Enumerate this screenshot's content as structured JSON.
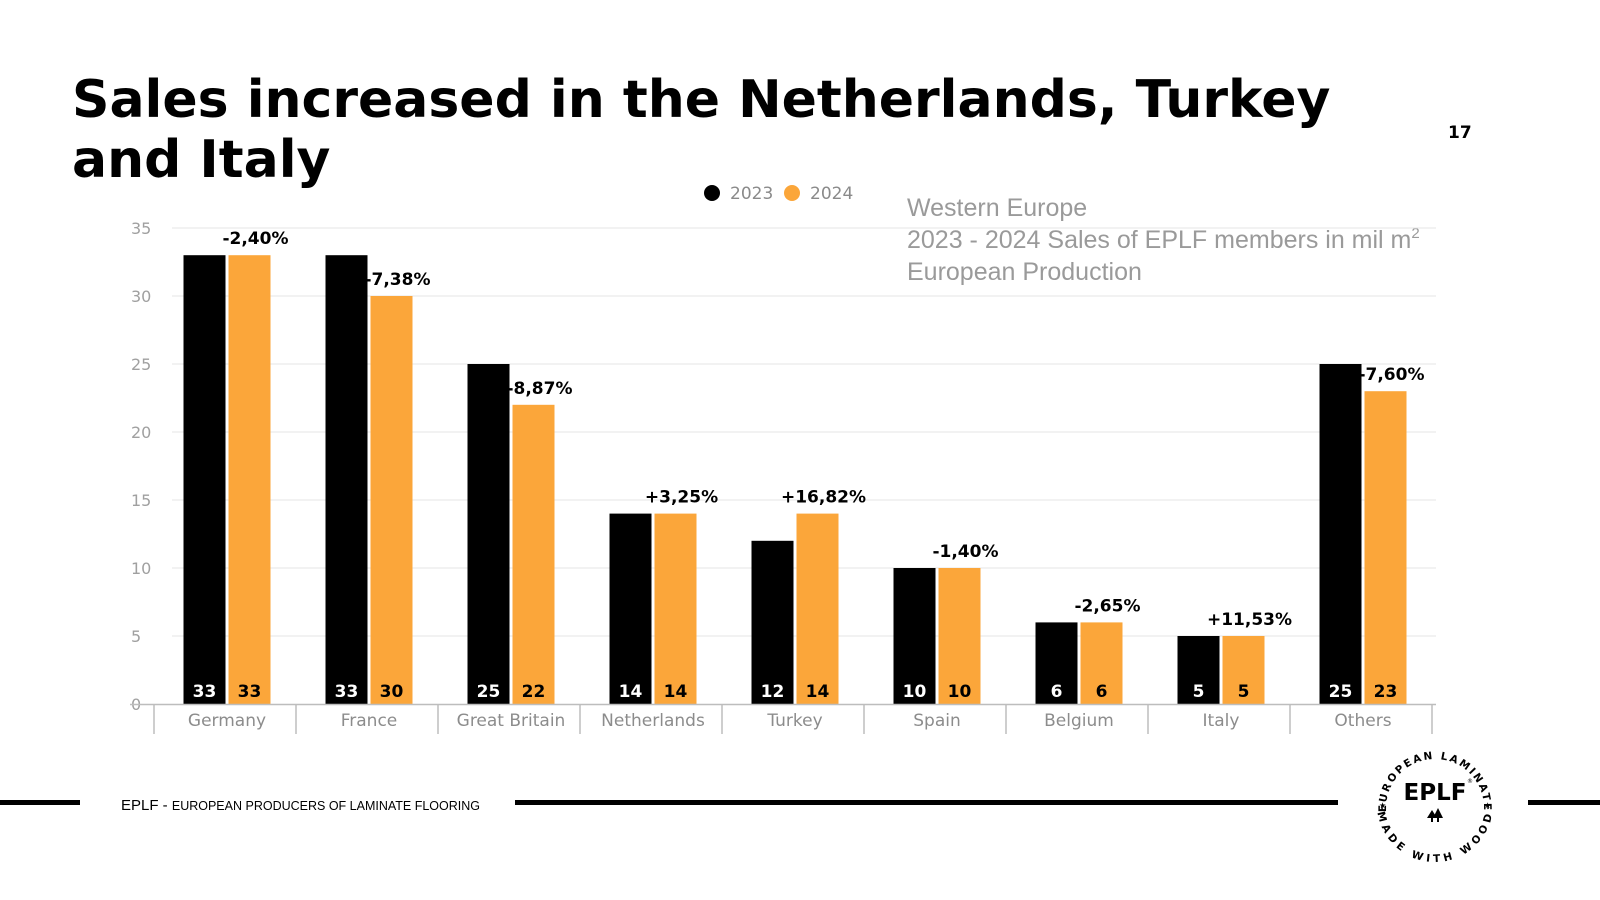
{
  "slide": {
    "title": "Sales increased in the Netherlands, Turkey and Italy",
    "page_number": "17",
    "subtitle_lines": [
      "Western Europe",
      "2023 - 2024 Sales of EPLF members in mil m",
      "European Production"
    ],
    "subtitle_unit_sup": "2"
  },
  "footer": {
    "abbr": "EPLF",
    "separator": " - ",
    "full_name": "EUROPEAN PRODUCERS OF LAMINATE FLOORING"
  },
  "logo": {
    "top_arc_text": "EUROPEAN LAMINATE",
    "bottom_arc_text": "MADE WITH WOOD",
    "center_text": "EPLF",
    "registered": "®"
  },
  "colors": {
    "series_2023": "#000000",
    "series_2024": "#fba63a",
    "axis_text": "#8c8c8c",
    "grid": "#e6e6e6"
  },
  "chart_data": {
    "type": "bar",
    "title": "2023 - 2024 Sales of EPLF members in mil m2",
    "xlabel": "",
    "ylabel": "",
    "ylim": [
      0,
      35
    ],
    "yticks": [
      0,
      5,
      10,
      15,
      20,
      25,
      30,
      35
    ],
    "grid": true,
    "legend_position": "top-center",
    "categories": [
      "Germany",
      "France",
      "Great Britain",
      "Netherlands",
      "Turkey",
      "Spain",
      "Belgium",
      "Italy",
      "Others"
    ],
    "series": [
      {
        "name": "2023",
        "values": [
          33,
          33,
          25,
          14,
          12,
          10,
          6,
          5,
          25
        ]
      },
      {
        "name": "2024",
        "values": [
          33,
          30,
          22,
          14,
          14,
          10,
          6,
          5,
          23
        ]
      }
    ],
    "changes": [
      "-2,40%",
      "-7,38%",
      "-8,87%",
      "+3,25%",
      "+16,82%",
      "-1,40%",
      "-2,65%",
      "+11,53%",
      "-7,60%"
    ]
  }
}
